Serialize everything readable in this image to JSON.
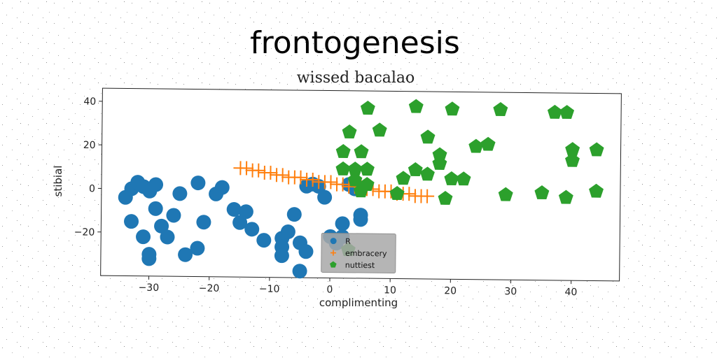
{
  "chart_data": {
    "type": "scatter",
    "title": "frontogenesis",
    "subtitle": "wissed bacalao",
    "xlabel": "complimenting",
    "ylabel": "stibial",
    "xlim": [
      -38,
      48
    ],
    "ylim": [
      -40,
      46
    ],
    "xticks": [
      -30,
      -20,
      -10,
      0,
      10,
      20,
      30,
      40
    ],
    "yticks": [
      -20,
      0,
      20,
      40
    ],
    "xtick_labels": [
      "−30",
      "−20",
      "−10",
      "0",
      "10",
      "20",
      "30",
      "40"
    ],
    "ytick_labels": [
      "−20",
      "0",
      "20",
      "40"
    ],
    "legend_position": "lower-center",
    "series": [
      {
        "name": "R",
        "marker": "circle",
        "color": "#1f77b4",
        "points": [
          [
            -34,
            -4
          ],
          [
            -33,
            0
          ],
          [
            -32,
            3
          ],
          [
            -31,
            1
          ],
          [
            -30,
            -1
          ],
          [
            -29,
            2
          ],
          [
            -33,
            -15
          ],
          [
            -31,
            -22
          ],
          [
            -29,
            -9
          ],
          [
            -28,
            -17
          ],
          [
            -26,
            -12
          ],
          [
            -27,
            -22
          ],
          [
            -25,
            -2
          ],
          [
            -24,
            -30
          ],
          [
            -22,
            -27
          ],
          [
            -22,
            3
          ],
          [
            -21,
            -15
          ],
          [
            -19,
            -2
          ],
          [
            -18,
            1
          ],
          [
            -16,
            -9
          ],
          [
            -15,
            -15
          ],
          [
            -14,
            -10
          ],
          [
            -13,
            -18
          ],
          [
            -11,
            -23
          ],
          [
            -8,
            -22
          ],
          [
            -8,
            -26
          ],
          [
            -8,
            -30
          ],
          [
            -7,
            -19
          ],
          [
            -6,
            -11
          ],
          [
            -5,
            -24
          ],
          [
            -4,
            -28
          ],
          [
            -5,
            -37
          ],
          [
            -4,
            2
          ],
          [
            -3,
            3
          ],
          [
            -2,
            2
          ],
          [
            -1,
            -3
          ],
          [
            0,
            -21
          ],
          [
            1,
            -24
          ],
          [
            2,
            -15
          ],
          [
            2,
            -21
          ],
          [
            3,
            3
          ],
          [
            4,
            1
          ],
          [
            5,
            -11
          ],
          [
            5,
            -13
          ],
          [
            -30,
            -30
          ],
          [
            -30,
            -32
          ]
        ]
      },
      {
        "name": "embracery",
        "marker": "plus",
        "color": "#ff7f0e",
        "points": [
          [
            -15,
            10
          ],
          [
            -14,
            10
          ],
          [
            -13,
            9
          ],
          [
            -12,
            9
          ],
          [
            -11,
            8
          ],
          [
            -10,
            8
          ],
          [
            -9,
            7
          ],
          [
            -8,
            7
          ],
          [
            -7,
            6
          ],
          [
            -6,
            6
          ],
          [
            -5,
            6
          ],
          [
            -4,
            5
          ],
          [
            -3,
            5
          ],
          [
            -2,
            4
          ],
          [
            -1,
            4
          ],
          [
            0,
            4
          ],
          [
            1,
            3
          ],
          [
            2,
            3
          ],
          [
            3,
            2
          ],
          [
            4,
            2
          ],
          [
            5,
            2
          ],
          [
            6,
            1
          ],
          [
            7,
            1
          ],
          [
            8,
            0
          ],
          [
            9,
            0
          ],
          [
            10,
            0
          ],
          [
            11,
            -1
          ],
          [
            12,
            -1
          ],
          [
            13,
            -1
          ],
          [
            14,
            -2
          ],
          [
            15,
            -2
          ],
          [
            16,
            -2
          ]
        ]
      },
      {
        "name": "nuttiest",
        "marker": "pentagon",
        "color": "#2ca02c",
        "points": [
          [
            3,
            -27
          ],
          [
            6,
            38
          ],
          [
            8,
            28
          ],
          [
            14,
            39
          ],
          [
            20,
            38
          ],
          [
            28,
            38
          ],
          [
            37,
            37
          ],
          [
            39,
            37
          ],
          [
            16,
            25
          ],
          [
            3,
            27
          ],
          [
            2,
            18
          ],
          [
            5,
            18
          ],
          [
            18,
            17
          ],
          [
            18,
            13
          ],
          [
            24,
            21
          ],
          [
            26,
            22
          ],
          [
            40,
            20
          ],
          [
            44,
            20
          ],
          [
            40,
            15
          ],
          [
            2,
            10
          ],
          [
            4,
            10
          ],
          [
            6,
            10
          ],
          [
            14,
            10
          ],
          [
            12,
            6
          ],
          [
            16,
            8
          ],
          [
            20,
            6
          ],
          [
            22,
            6
          ],
          [
            4,
            5
          ],
          [
            6,
            3
          ],
          [
            11,
            -1
          ],
          [
            19,
            -3
          ],
          [
            29,
            -1
          ],
          [
            35,
            0
          ],
          [
            39,
            -2
          ],
          [
            44,
            1
          ],
          [
            5,
            0
          ]
        ]
      }
    ]
  },
  "legend": {
    "items": [
      "R",
      "embracery",
      "nuttiest"
    ]
  }
}
